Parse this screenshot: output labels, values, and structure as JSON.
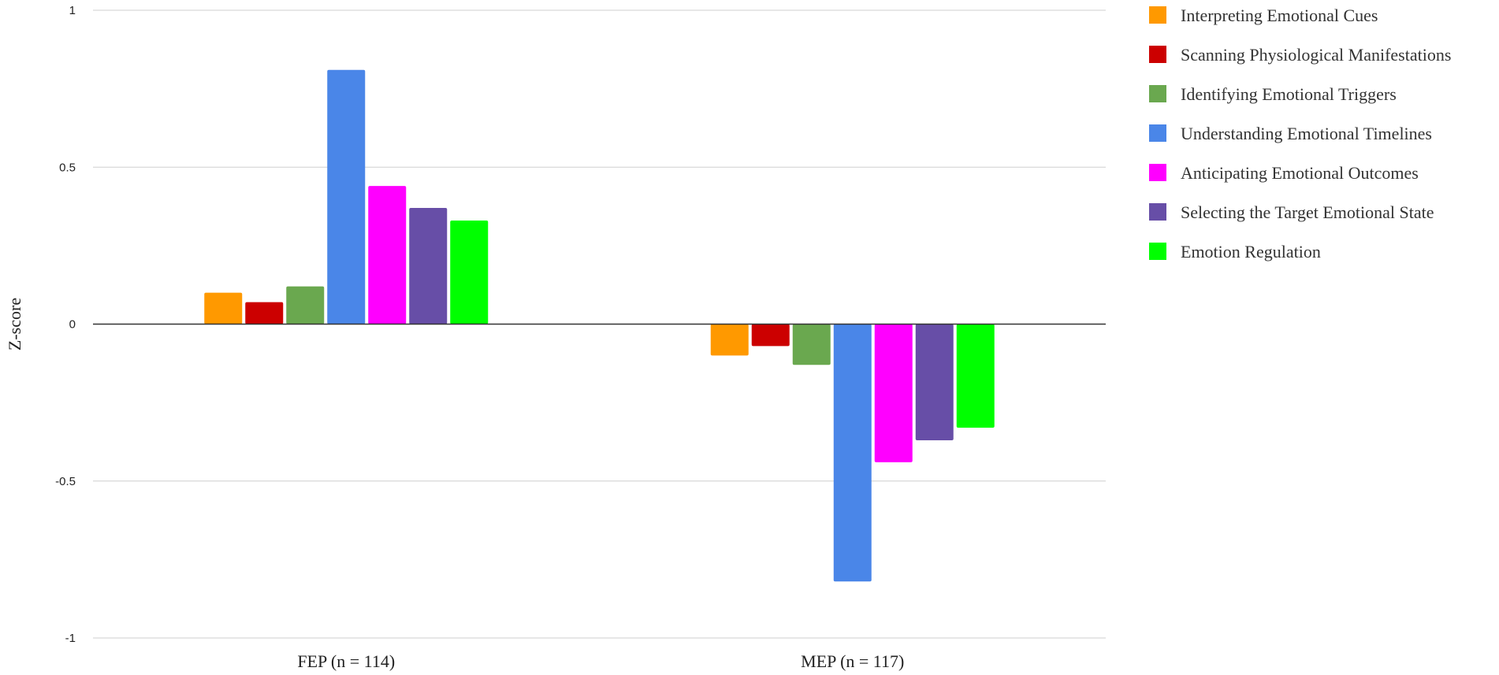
{
  "chart_data": {
    "type": "bar",
    "title": "",
    "xlabel": "",
    "ylabel": "Z-score",
    "ylim": [
      -1,
      1
    ],
    "yticks": [
      1,
      0.5,
      0,
      -0.5,
      -1
    ],
    "ytick_labels": [
      "1",
      "0.5",
      "0",
      "-0.5",
      "-1"
    ],
    "grid": true,
    "legend_position": "right",
    "categories": [
      "FEP (n = 114)",
      "MEP (n = 117)"
    ],
    "series": [
      {
        "name": "Interpreting Emotional Cues",
        "color": "#FF9900",
        "values": [
          0.1,
          -0.1
        ]
      },
      {
        "name": "Scanning Physiological Manifestations",
        "color": "#CC0000",
        "values": [
          0.07,
          -0.07
        ]
      },
      {
        "name": "Identifying Emotional Triggers",
        "color": "#6AA84F",
        "values": [
          0.12,
          -0.13
        ]
      },
      {
        "name": "Understanding Emotional Timelines",
        "color": "#4A86E8",
        "values": [
          0.81,
          -0.82
        ]
      },
      {
        "name": "Anticipating Emotional Outcomes",
        "color": "#FF00FF",
        "values": [
          0.44,
          -0.44
        ]
      },
      {
        "name": "Selecting the Target Emotional State",
        "color": "#674EA7",
        "values": [
          0.37,
          -0.37
        ]
      },
      {
        "name": "Emotion Regulation",
        "color": "#00FF00",
        "values": [
          0.33,
          -0.33
        ]
      }
    ]
  }
}
